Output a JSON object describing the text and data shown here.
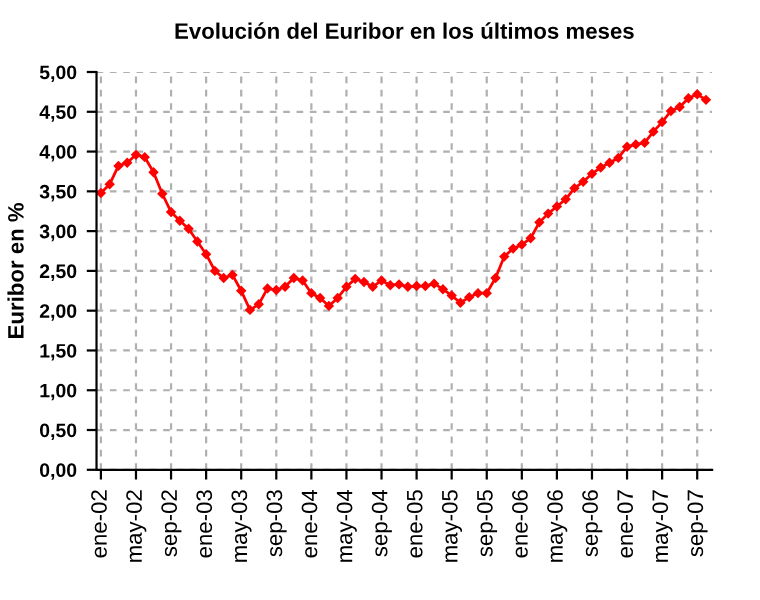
{
  "chart_data": {
    "type": "line",
    "title": "Evolución del Euribor en los últimos meses",
    "ylabel": "Euribor en %",
    "categories": [
      "ene-02",
      null,
      null,
      null,
      "may-02",
      null,
      null,
      null,
      "sep-02",
      null,
      null,
      null,
      "ene-03",
      null,
      null,
      null,
      "may-03",
      null,
      null,
      null,
      "sep-03",
      null,
      null,
      null,
      "ene-04",
      null,
      null,
      null,
      "may-04",
      null,
      null,
      null,
      "sep-04",
      null,
      null,
      null,
      "ene-05",
      null,
      null,
      null,
      "may-05",
      null,
      null,
      null,
      "sep-05",
      null,
      null,
      null,
      "ene-06",
      null,
      null,
      null,
      "may-06",
      null,
      null,
      null,
      "sep-06",
      null,
      null,
      null,
      "ene-07",
      null,
      null,
      null,
      "may-07",
      null,
      null,
      null,
      "sep-07",
      null
    ],
    "series": [
      {
        "color": "#ff0000",
        "values": [
          3.48,
          3.59,
          3.82,
          3.86,
          3.96,
          3.93,
          3.74,
          3.47,
          3.24,
          3.13,
          3.03,
          2.87,
          2.71,
          2.5,
          2.41,
          2.45,
          2.25,
          2.01,
          2.08,
          2.28,
          2.26,
          2.3,
          2.41,
          2.38,
          2.22,
          2.16,
          2.06,
          2.16,
          2.3,
          2.4,
          2.36,
          2.3,
          2.38,
          2.32,
          2.33,
          2.3,
          2.31,
          2.31,
          2.34,
          2.27,
          2.19,
          2.1,
          2.17,
          2.22,
          2.22,
          2.41,
          2.68,
          2.78,
          2.83,
          2.91,
          3.11,
          3.22,
          3.31,
          3.4,
          3.54,
          3.62,
          3.72,
          3.8,
          3.86,
          3.92,
          4.06,
          4.09,
          4.11,
          4.25,
          4.37,
          4.51,
          4.56,
          4.67,
          4.72,
          4.65
        ]
      }
    ],
    "ylim": [
      0,
      5
    ],
    "yticks": [
      {
        "value": 0,
        "label": "0,00"
      },
      {
        "value": 0.5,
        "label": "0,50"
      },
      {
        "value": 1,
        "label": "1,00"
      },
      {
        "value": 1.5,
        "label": "1,50"
      },
      {
        "value": 2,
        "label": "2,00"
      },
      {
        "value": 2.5,
        "label": "2,50"
      },
      {
        "value": 3,
        "label": "3,00"
      },
      {
        "value": 3.5,
        "label": "3,50"
      },
      {
        "value": 4,
        "label": "4,00"
      },
      {
        "value": 4.5,
        "label": "4,50"
      },
      {
        "value": 5,
        "label": "5,00"
      }
    ],
    "grid": true,
    "marker": "diamond",
    "line_style": "solid"
  }
}
